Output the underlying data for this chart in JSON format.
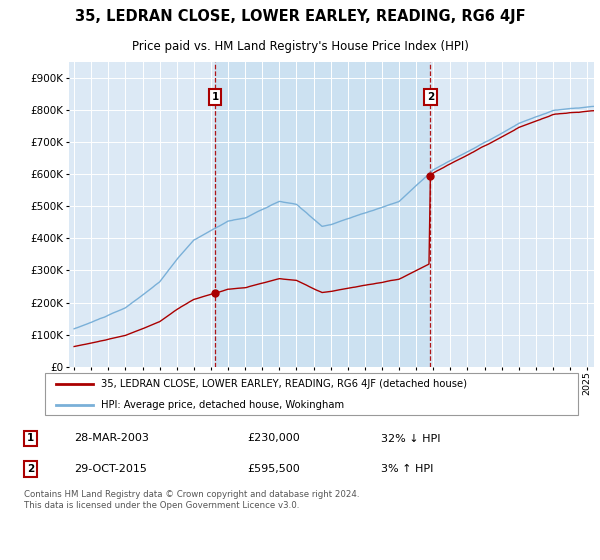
{
  "title": "35, LEDRAN CLOSE, LOWER EARLEY, READING, RG6 4JF",
  "subtitle": "Price paid vs. HM Land Registry's House Price Index (HPI)",
  "background_color": "#dce9f5",
  "plot_bg_color": "#dce9f5",
  "legend_label_red": "35, LEDRAN CLOSE, LOWER EARLEY, READING, RG6 4JF (detached house)",
  "legend_label_blue": "HPI: Average price, detached house, Wokingham",
  "sale1_date": "28-MAR-2003",
  "sale1_price": 230000,
  "sale1_pct": "32% ↓ HPI",
  "sale2_date": "29-OCT-2015",
  "sale2_price": 595500,
  "sale2_pct": "3% ↑ HPI",
  "footer": "Contains HM Land Registry data © Crown copyright and database right 2024.\nThis data is licensed under the Open Government Licence v3.0.",
  "red_color": "#aa0000",
  "blue_color": "#7ab0d8",
  "shade_color": "#c8dff0",
  "marker1_x": 2003.24,
  "marker2_x": 2015.83,
  "ylim_max": 950000,
  "ylim_min": 0,
  "xmin": 1994.7,
  "xmax": 2025.4
}
